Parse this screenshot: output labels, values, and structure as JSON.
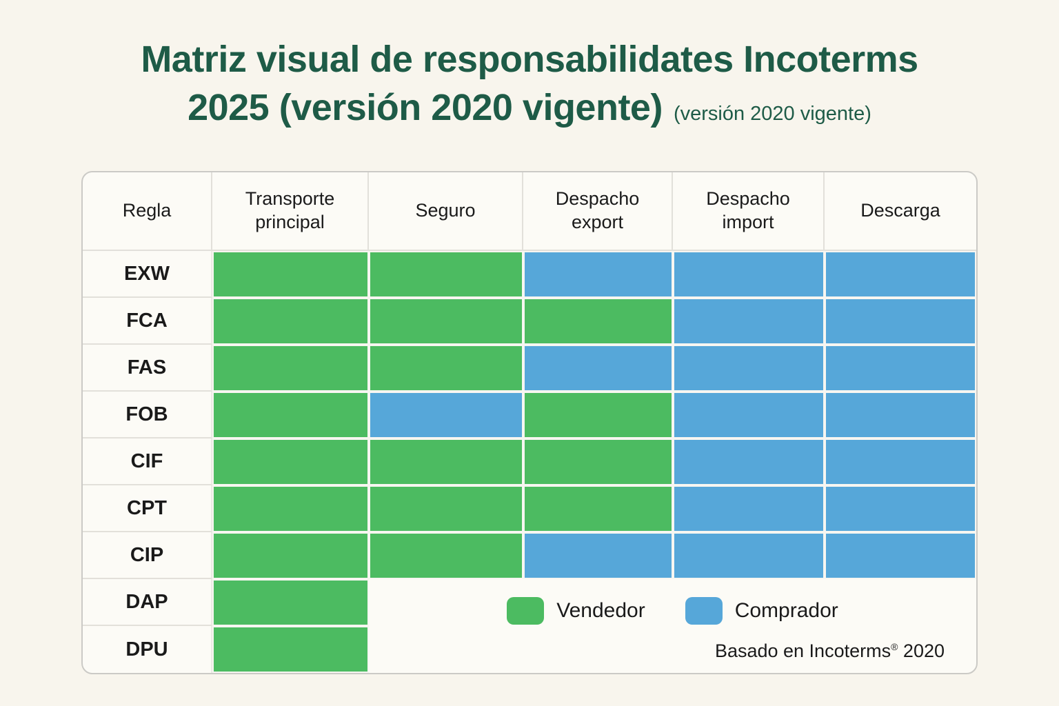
{
  "title": {
    "line1": "Matriz visual de responsabilidates Incoterms",
    "line2": "2025 (versión 2020 vigente)",
    "line2_suffix": "(versión 2020 vigente)",
    "color": "#1e5b47"
  },
  "colors": {
    "vendedor": "#4cbb61",
    "comprador": "#56a7d9",
    "title_green": "#1e5b47",
    "page_background": "#f8f5ed",
    "table_background": "#fcfbf6"
  },
  "table": {
    "columns": [
      "Regla",
      "Transporte principal",
      "Seguro",
      "Despacho export",
      "Despacho import",
      "Descarga"
    ],
    "rows": [
      {
        "label": "EXW",
        "cells": [
          "vendedor",
          "vendedor",
          "comprador",
          "comprador",
          "comprador"
        ]
      },
      {
        "label": "FCA",
        "cells": [
          "vendedor",
          "vendedor",
          "vendedor",
          "comprador",
          "comprador"
        ]
      },
      {
        "label": "FAS",
        "cells": [
          "vendedor",
          "vendedor",
          "comprador",
          "comprador",
          "comprador"
        ]
      },
      {
        "label": "FOB",
        "cells": [
          "vendedor",
          "comprador",
          "vendedor",
          "comprador",
          "comprador"
        ]
      },
      {
        "label": "CIF",
        "cells": [
          "vendedor",
          "vendedor",
          "vendedor",
          "comprador",
          "comprador"
        ]
      },
      {
        "label": "CPT",
        "cells": [
          "vendedor",
          "vendedor",
          "vendedor",
          "comprador",
          "comprador"
        ]
      },
      {
        "label": "CIP",
        "cells": [
          "vendedor",
          "vendedor",
          "comprador",
          "comprador",
          "comprador"
        ]
      },
      {
        "label": "DAP",
        "cells": [
          "vendedor",
          null,
          null,
          null,
          null
        ]
      },
      {
        "label": "DPU",
        "cells": [
          "vendedor",
          null,
          null,
          null,
          null
        ]
      }
    ]
  },
  "legend": {
    "items": [
      {
        "label": "Vendedor",
        "color_key": "vendedor"
      },
      {
        "label": "Comprador",
        "color_key": "comprador"
      }
    ],
    "footnote_pre": "Basado en Incoterms",
    "footnote_sym": "®",
    "footnote_post": " 2020"
  },
  "chart_data": {
    "type": "heatmap",
    "title": "Matriz visual de responsabilidates Incoterms 2025 (versión 2020 vigente)",
    "subtitle": "(versión 2020 vigente)",
    "columns": [
      "Transporte principal",
      "Seguro",
      "Despacho export",
      "Despacho import",
      "Descarga"
    ],
    "rows": [
      "EXW",
      "FCA",
      "FAS",
      "FOB",
      "CIF",
      "CPT",
      "CIP",
      "DAP",
      "DPU"
    ],
    "values": [
      [
        "Vendedor",
        "Vendedor",
        "Comprador",
        "Comprador",
        "Comprador"
      ],
      [
        "Vendedor",
        "Vendedor",
        "Vendedor",
        "Comprador",
        "Comprador"
      ],
      [
        "Vendedor",
        "Vendedor",
        "Comprador",
        "Comprador",
        "Comprador"
      ],
      [
        "Vendedor",
        "Comprador",
        "Vendedor",
        "Comprador",
        "Comprador"
      ],
      [
        "Vendedor",
        "Vendedor",
        "Vendedor",
        "Comprador",
        "Comprador"
      ],
      [
        "Vendedor",
        "Vendedor",
        "Vendedor",
        "Comprador",
        "Comprador"
      ],
      [
        "Vendedor",
        "Vendedor",
        "Comprador",
        "Comprador",
        "Comprador"
      ],
      [
        "Vendedor",
        null,
        null,
        null,
        null
      ],
      [
        "Vendedor",
        null,
        null,
        null,
        null
      ]
    ],
    "legend": {
      "Vendedor": "#4cbb61",
      "Comprador": "#56a7d9"
    },
    "legend_position": "bottom-right merged area (rows DAP–DPU, columns Seguro–Descarga)",
    "footnote": "Basado en Incoterms® 2020"
  }
}
